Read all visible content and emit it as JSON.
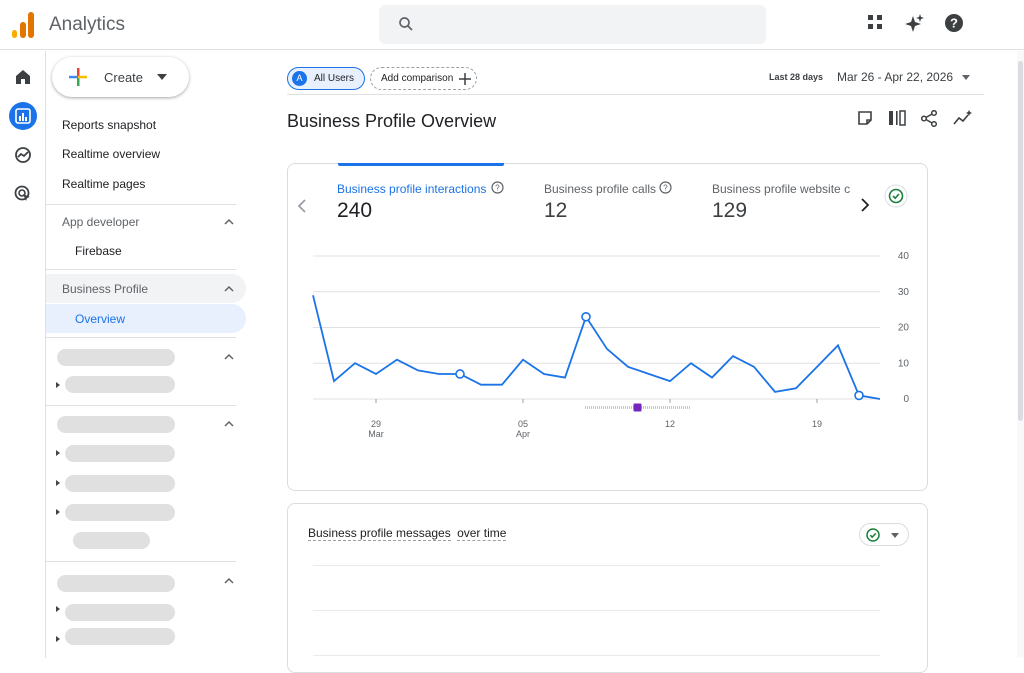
{
  "app": {
    "title": "Analytics"
  },
  "header_icons": [
    "apps-grid-icon",
    "sparkle-icon",
    "help-icon"
  ],
  "rail": [
    "home-icon",
    "reports-icon",
    "explore-icon",
    "advertising-icon"
  ],
  "sidebar": {
    "create_label": "Create",
    "items": [
      {
        "label": "Reports snapshot"
      },
      {
        "label": "Realtime overview"
      },
      {
        "label": "Realtime pages"
      }
    ],
    "sections": [
      {
        "title": "App developer",
        "children": [
          {
            "label": "Firebase"
          }
        ]
      },
      {
        "title": "Business Profile",
        "children": [
          {
            "label": "Overview",
            "selected": true
          }
        ]
      }
    ]
  },
  "filters": {
    "segment_avatar": "A",
    "segment_label": "All Users",
    "add_comparison_label": "Add comparison"
  },
  "date_range": {
    "label": "Last 28 days",
    "value": "Mar 26 - Apr 22, 2026"
  },
  "page": {
    "title": "Business Profile Overview"
  },
  "metrics_card": {
    "tabs": [
      {
        "label": "Business profile interactions",
        "value": "240",
        "active": true
      },
      {
        "label": "Business profile calls",
        "value": "12"
      },
      {
        "label": "Business profile website c",
        "value": "129"
      }
    ]
  },
  "chart_data": {
    "type": "line",
    "x": [
      "Mar 26",
      "Mar 27",
      "Mar 28",
      "Mar 29",
      "Mar 30",
      "Mar 31",
      "Apr 1",
      "Apr 2",
      "Apr 3",
      "Apr 4",
      "Apr 5",
      "Apr 6",
      "Apr 7",
      "Apr 8",
      "Apr 9",
      "Apr 10",
      "Apr 11",
      "Apr 12",
      "Apr 13",
      "Apr 14",
      "Apr 15",
      "Apr 16",
      "Apr 17",
      "Apr 18",
      "Apr 19",
      "Apr 20",
      "Apr 21",
      "Apr 22"
    ],
    "series": [
      {
        "values": [
          29,
          5,
          10,
          7,
          11,
          8,
          7,
          7,
          4,
          4,
          11,
          7,
          6,
          23,
          14,
          9,
          7,
          5,
          10,
          6,
          12,
          9,
          2,
          3,
          9,
          15,
          1,
          0
        ],
        "color": "#1a73e8"
      }
    ],
    "xticks": [
      {
        "label": "29",
        "sub": "Mar"
      },
      {
        "label": "05",
        "sub": "Apr"
      },
      {
        "label": "12",
        "sub": ""
      },
      {
        "label": "19",
        "sub": ""
      }
    ],
    "yticks": [
      "40",
      "30",
      "20",
      "10",
      "0"
    ],
    "ylim": [
      0,
      40
    ],
    "grid": true
  },
  "second_card": {
    "title_part1": "Business profile messages",
    "title_part2": "over time"
  },
  "colors": {
    "accent": "#1a73e8",
    "success": "#188038",
    "anomaly": "#7627bb"
  }
}
